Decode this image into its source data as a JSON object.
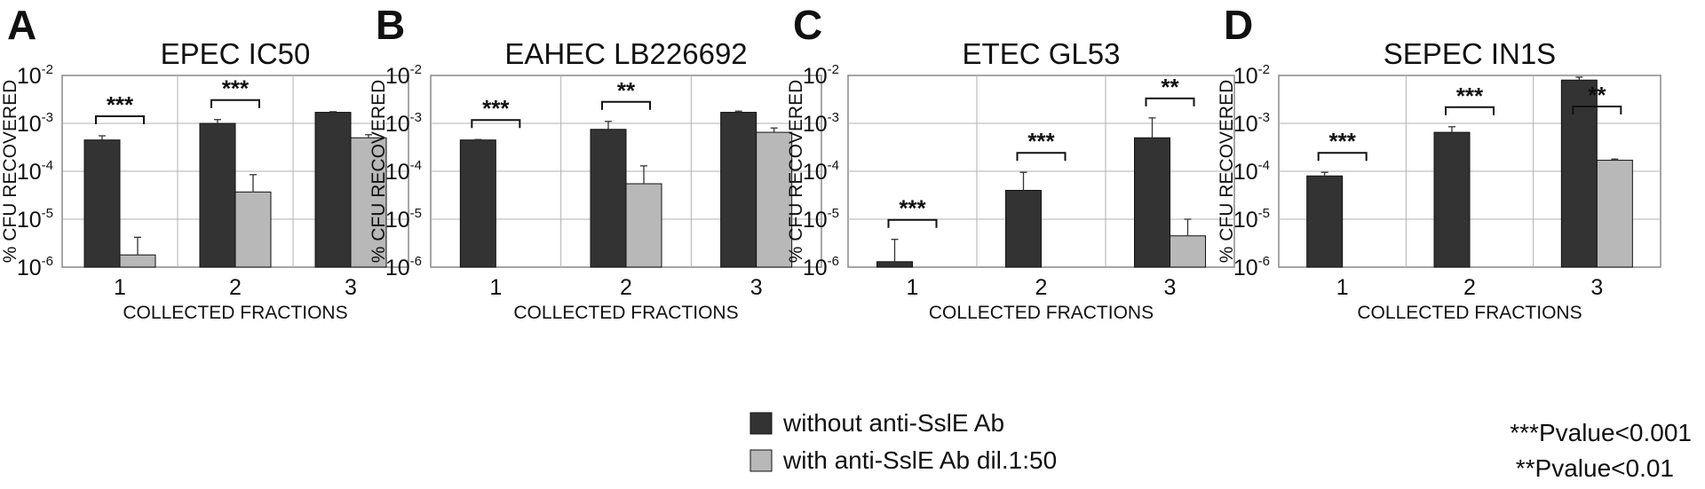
{
  "chart_data": [
    {
      "letter": "A",
      "type": "bar",
      "title": "EPEC IC50",
      "ylabel": "% CFU RECOVERED",
      "xlabel": "COLLECTED FRACTIONS",
      "categories": [
        "1",
        "2",
        "3"
      ],
      "yscale": "log",
      "ylim": [
        1e-06,
        0.01
      ],
      "yticks": [
        1e-06,
        1e-05,
        0.0001,
        0.001,
        0.01
      ],
      "grid": true,
      "series": [
        {
          "name": "without anti-SslE Ab",
          "values": [
            0.00045,
            0.001,
            0.0017
          ],
          "error": [
            0.00055,
            0.0012,
            0.00175
          ]
        },
        {
          "name": "with anti-SslE Ab dil.1:50",
          "values": [
            1.8e-06,
            3.7e-05,
            0.0005
          ],
          "error": [
            4.2e-06,
            8.5e-05,
            0.00058
          ]
        }
      ],
      "significance": [
        {
          "category": "1",
          "label": "***"
        },
        {
          "category": "2",
          "label": "***"
        }
      ]
    },
    {
      "letter": "B",
      "type": "bar",
      "title": "EAHEC LB226692",
      "ylabel": "% CFU RECOVERED",
      "xlabel": "COLLECTED FRACTIONS",
      "categories": [
        "1",
        "2",
        "3"
      ],
      "yscale": "log",
      "ylim": [
        1e-06,
        0.01
      ],
      "yticks": [
        1e-06,
        1e-05,
        0.0001,
        0.001,
        0.01
      ],
      "grid": true,
      "series": [
        {
          "name": "without anti-SslE Ab",
          "values": [
            0.00045,
            0.00075,
            0.0017
          ],
          "error": [
            0.00046,
            0.0011,
            0.0018
          ]
        },
        {
          "name": "with anti-SslE Ab dil.1:50",
          "values": [
            null,
            5.5e-05,
            0.00065
          ],
          "error": [
            null,
            0.00013,
            0.0008
          ]
        }
      ],
      "significance": [
        {
          "category": "1",
          "label": "***"
        },
        {
          "category": "2",
          "label": "**"
        }
      ]
    },
    {
      "letter": "C",
      "type": "bar",
      "title": "ETEC GL53",
      "ylabel": "% CFU RECOVERED",
      "xlabel": "COLLECTED FRACTIONS",
      "categories": [
        "1",
        "2",
        "3"
      ],
      "yscale": "log",
      "ylim": [
        1e-06,
        0.01
      ],
      "yticks": [
        1e-06,
        1e-05,
        0.0001,
        0.001,
        0.01
      ],
      "grid": true,
      "series": [
        {
          "name": "without anti-SslE Ab",
          "values": [
            1.3e-06,
            4e-05,
            0.0005
          ],
          "error": [
            3.8e-06,
            9.5e-05,
            0.0013
          ]
        },
        {
          "name": "with anti-SslE Ab dil.1:50",
          "values": [
            null,
            null,
            4.5e-06
          ],
          "error": [
            null,
            null,
            1e-05
          ]
        }
      ],
      "significance": [
        {
          "category": "1",
          "label": "***"
        },
        {
          "category": "2",
          "label": "***"
        },
        {
          "category": "3",
          "label": "**"
        }
      ]
    },
    {
      "letter": "D",
      "type": "bar",
      "title": "SEPEC IN1S",
      "ylabel": "% CFU RECOVERED",
      "xlabel": "COLLECTED FRACTIONS",
      "categories": [
        "1",
        "2",
        "3"
      ],
      "yscale": "log",
      "ylim": [
        1e-06,
        0.01
      ],
      "yticks": [
        1e-06,
        1e-05,
        0.0001,
        0.001,
        0.01
      ],
      "grid": true,
      "series": [
        {
          "name": "without anti-SslE Ab",
          "values": [
            8e-05,
            0.00065,
            0.008
          ],
          "error": [
            9.5e-05,
            0.00085,
            0.0092
          ]
        },
        {
          "name": "with anti-SslE Ab dil.1:50",
          "values": [
            null,
            null,
            0.00017
          ],
          "error": [
            null,
            null,
            0.00018
          ]
        }
      ],
      "significance": [
        {
          "category": "1",
          "label": "***"
        },
        {
          "category": "2",
          "label": "***"
        },
        {
          "category": "3",
          "label": "**"
        }
      ]
    }
  ],
  "ytick_base": "10",
  "ytick_exponents": [
    "-6",
    "-5",
    "-4",
    "-3",
    "-2"
  ],
  "legend": {
    "placement": "bottom-center",
    "items": [
      {
        "label": "without anti-SslE Ab",
        "color": "#333333"
      },
      {
        "label": "with anti-SslE Ab dil.1:50",
        "color": "#b8b8b8"
      }
    ]
  },
  "pvalue_notes": [
    "***Pvalue<0.001",
    "**Pvalue<0.01"
  ],
  "colors": {
    "dark": "#333333",
    "light": "#b8b8b8",
    "grid": "#b0b0b0",
    "frame": "#888888"
  }
}
